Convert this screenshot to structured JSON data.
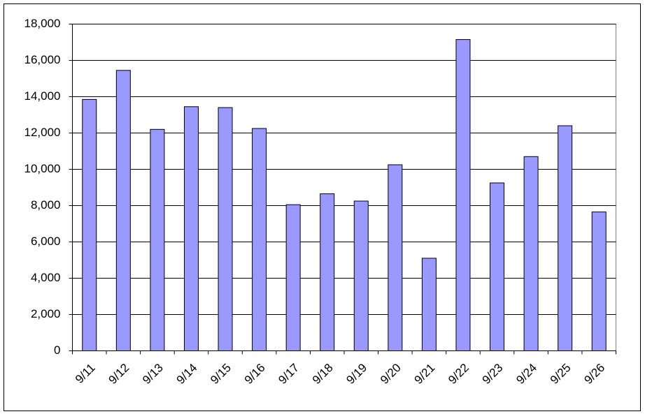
{
  "chart_data": {
    "type": "bar",
    "categories": [
      "9/11",
      "9/12",
      "9/13",
      "9/14",
      "9/15",
      "9/16",
      "9/17",
      "9/18",
      "9/19",
      "9/20",
      "9/21",
      "9/22",
      "9/23",
      "9/24",
      "9/25",
      "9/26"
    ],
    "values": [
      13850,
      15450,
      12200,
      13450,
      13400,
      12250,
      8050,
      8650,
      8250,
      10250,
      5100,
      17150,
      9250,
      10700,
      12400,
      7650
    ],
    "color": "#9999ff",
    "ylim": [
      0,
      18000
    ],
    "yticks": [
      0,
      {
        "value": 2000,
        "label": "2,000"
      },
      {
        "value": 4000,
        "label": "4,000"
      },
      {
        "value": 6000,
        "label": "6,000"
      },
      {
        "value": 8000,
        "label": "8,000"
      },
      {
        "value": 10000,
        "label": "10,000"
      },
      {
        "value": 12000,
        "label": "12,000"
      },
      {
        "value": 14000,
        "label": "14,000"
      },
      {
        "value": 16000,
        "label": "16,000"
      },
      {
        "value": 18000,
        "label": "18,000"
      }
    ],
    "grid": true
  }
}
